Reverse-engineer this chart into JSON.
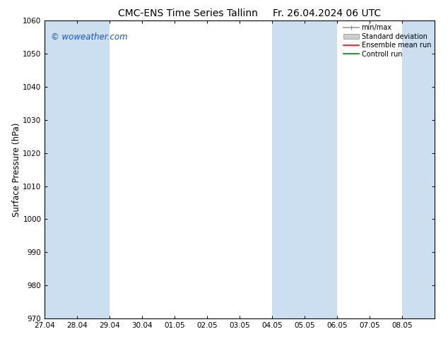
{
  "title_left": "CMC-ENS Time Series Tallinn",
  "title_right": "Fr. 26.04.2024 06 UTC",
  "ylabel": "Surface Pressure (hPa)",
  "ylim": [
    970,
    1060
  ],
  "yticks": [
    970,
    980,
    990,
    1000,
    1010,
    1020,
    1030,
    1040,
    1050,
    1060
  ],
  "xlabels": [
    "27.04",
    "28.04",
    "29.04",
    "30.04",
    "01.05",
    "02.05",
    "03.05",
    "04.05",
    "05.05",
    "06.05",
    "07.05",
    "08.05"
  ],
  "band_color": "#ccdff0",
  "band_intervals": [
    [
      0,
      2
    ],
    [
      7,
      9
    ],
    [
      11,
      12
    ]
  ],
  "watermark": "© woweather.com",
  "watermark_color": "#1155cc",
  "legend_entries": [
    "min/max",
    "Standard deviation",
    "Ensemble mean run",
    "Controll run"
  ],
  "legend_line_colors": [
    "#999999",
    "#bbbbbb",
    "#ff0000",
    "#008800"
  ],
  "bg_color": "#ffffff",
  "title_fontsize": 10,
  "tick_fontsize": 7.5,
  "ylabel_fontsize": 8.5
}
